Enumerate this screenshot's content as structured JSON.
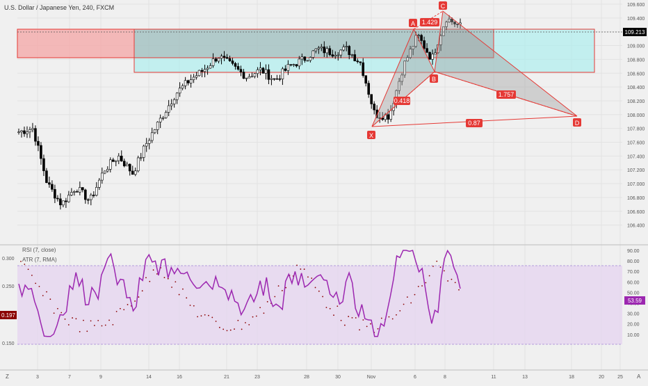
{
  "header": {
    "symbol_title": "U.S. Dollar / Japanese Yen, 240, FXCM"
  },
  "price_panel": {
    "current_price": "109.213",
    "y_ticks": [
      "109.600",
      "109.400",
      "109.200",
      "109.000",
      "108.800",
      "108.600",
      "108.400",
      "108.200",
      "108.000",
      "107.800",
      "107.600",
      "107.400",
      "107.200",
      "107.000",
      "106.800",
      "106.600",
      "106.400"
    ]
  },
  "rsi_panel": {
    "legend_rsi": "RSI (7, close)",
    "legend_atr": "ATR (7, RMA)",
    "right_ticks": [
      "90.00",
      "80.00",
      "70.00",
      "60.00",
      "50.00",
      "40.00",
      "30.00",
      "20.00",
      "10.00"
    ],
    "left_ticks": [
      "0.300",
      "0.250",
      "0.200",
      "0.150"
    ],
    "rsi_value": "53.59",
    "atr_value": "0.197"
  },
  "x_axis": {
    "labels": [
      "3",
      "7",
      "9",
      "14",
      "16",
      "21",
      "23",
      "28",
      "30",
      "Nov",
      "6",
      "8",
      "11",
      "13",
      "18",
      "20",
      "25"
    ]
  },
  "pattern": {
    "point_labels": [
      "X",
      "A",
      "B",
      "C",
      "D"
    ],
    "ratios": [
      "1.429",
      "0.418",
      "1.757",
      "0.87"
    ]
  },
  "footer": {
    "left_letter": "Z",
    "right_letter": "A"
  },
  "colors": {
    "background": "#f0f0f0",
    "up_candle": "#ffffff",
    "down_candle": "#000000",
    "pattern_line": "#e53935",
    "pattern_fill": "#9e9e9e",
    "supply_zone": "#f4a6a6",
    "demand_zone": "#aeeeee",
    "rsi_line": "#9c27b0",
    "rsi_band": "#e6d6f0",
    "label_bg": "#e53935"
  },
  "chart_data": [
    {
      "type": "candlestick",
      "title": "U.S. Dollar / Japanese Yen, 240, FXCM",
      "y_range": [
        106.35,
        109.65
      ],
      "current_price": 109.213,
      "close_path_approx": [
        107.75,
        107.8,
        107.0,
        106.7,
        106.95,
        106.75,
        107.2,
        107.4,
        107.15,
        107.6,
        107.95,
        108.3,
        108.5,
        108.65,
        108.85,
        108.7,
        108.55,
        108.65,
        108.5,
        108.7,
        108.8,
        108.95,
        108.9,
        108.95,
        108.75,
        108.0,
        107.98,
        108.7,
        109.15,
        108.8,
        109.4,
        109.28
      ],
      "harmonic_pattern": {
        "points": {
          "X": 107.93,
          "A": 109.17,
          "B": 108.82,
          "C": 109.48,
          "D": 108.08
        },
        "ratios": [
          "0.418",
          "1.429",
          "1.757",
          "0.87"
        ]
      },
      "zones": [
        {
          "name": "supply",
          "low": 108.92,
          "high": 109.23
        },
        {
          "name": "demand",
          "low": 108.72,
          "high": 109.23
        }
      ]
    },
    {
      "type": "line",
      "legend": [
        "RSI (7, close)",
        "ATR (7, RMA)"
      ],
      "rsi_range": [
        0,
        100
      ],
      "rsi_band": [
        20,
        80
      ],
      "rsi_last": 53.59,
      "atr_range": [
        0.12,
        0.32
      ],
      "atr_last": 0.197
    }
  ]
}
